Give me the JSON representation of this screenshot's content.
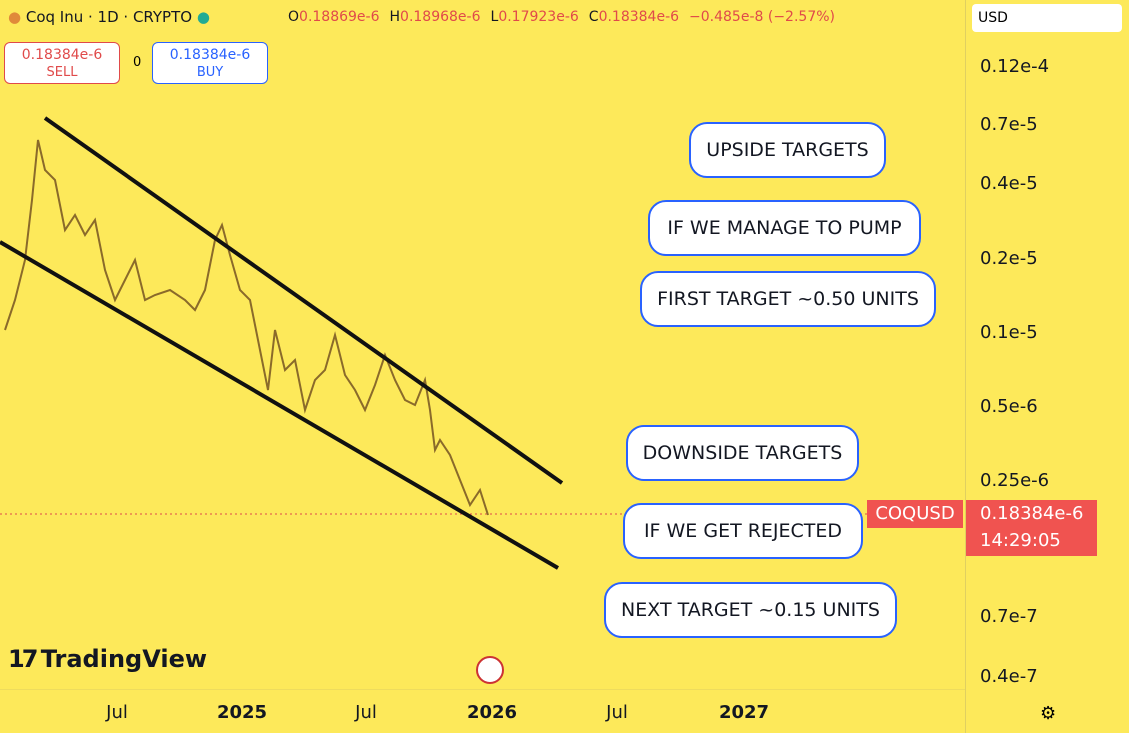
{
  "header": {
    "symbol": "Coq Inu · 1D · CRYPTO",
    "ohlc": [
      {
        "key": "O",
        "value": "0.18869e-6"
      },
      {
        "key": "H",
        "value": "0.18968e-6"
      },
      {
        "key": "L",
        "value": "0.17923e-6"
      },
      {
        "key": "C",
        "value": "0.18384e-6"
      }
    ],
    "change": "−0.485e-8 (−2.57%)"
  },
  "trade": {
    "sell_price": "0.18384e-6",
    "sell_label": "SELL",
    "spread": "0",
    "buy_price": "0.18384e-6",
    "buy_label": "BUY"
  },
  "price_axis": {
    "currency": "USD",
    "labels": [
      "0.12e-4",
      "0.7e-5",
      "0.4e-5",
      "0.2e-5",
      "0.1e-5",
      "0.5e-6",
      "0.25e-6",
      "0.7e-7",
      "0.4e-7"
    ],
    "last_price": {
      "symbol": "COQUSD",
      "price": "0.18384e-6",
      "countdown": "14:29:05"
    }
  },
  "time_axis": {
    "labels": [
      {
        "text": "Jul",
        "bold": false
      },
      {
        "text": "2025",
        "bold": true
      },
      {
        "text": "Jul",
        "bold": false
      },
      {
        "text": "2026",
        "bold": true
      },
      {
        "text": "Jul",
        "bold": false
      },
      {
        "text": "2027",
        "bold": true
      }
    ]
  },
  "annotations": [
    "UPSIDE TARGETS",
    "IF WE MANAGE TO PUMP",
    "FIRST TARGET ~0.50 UNITS",
    "DOWNSIDE TARGETS",
    "IF WE GET REJECTED",
    "NEXT TARGET ~0.15 UNITS"
  ],
  "logo": "TradingView"
}
